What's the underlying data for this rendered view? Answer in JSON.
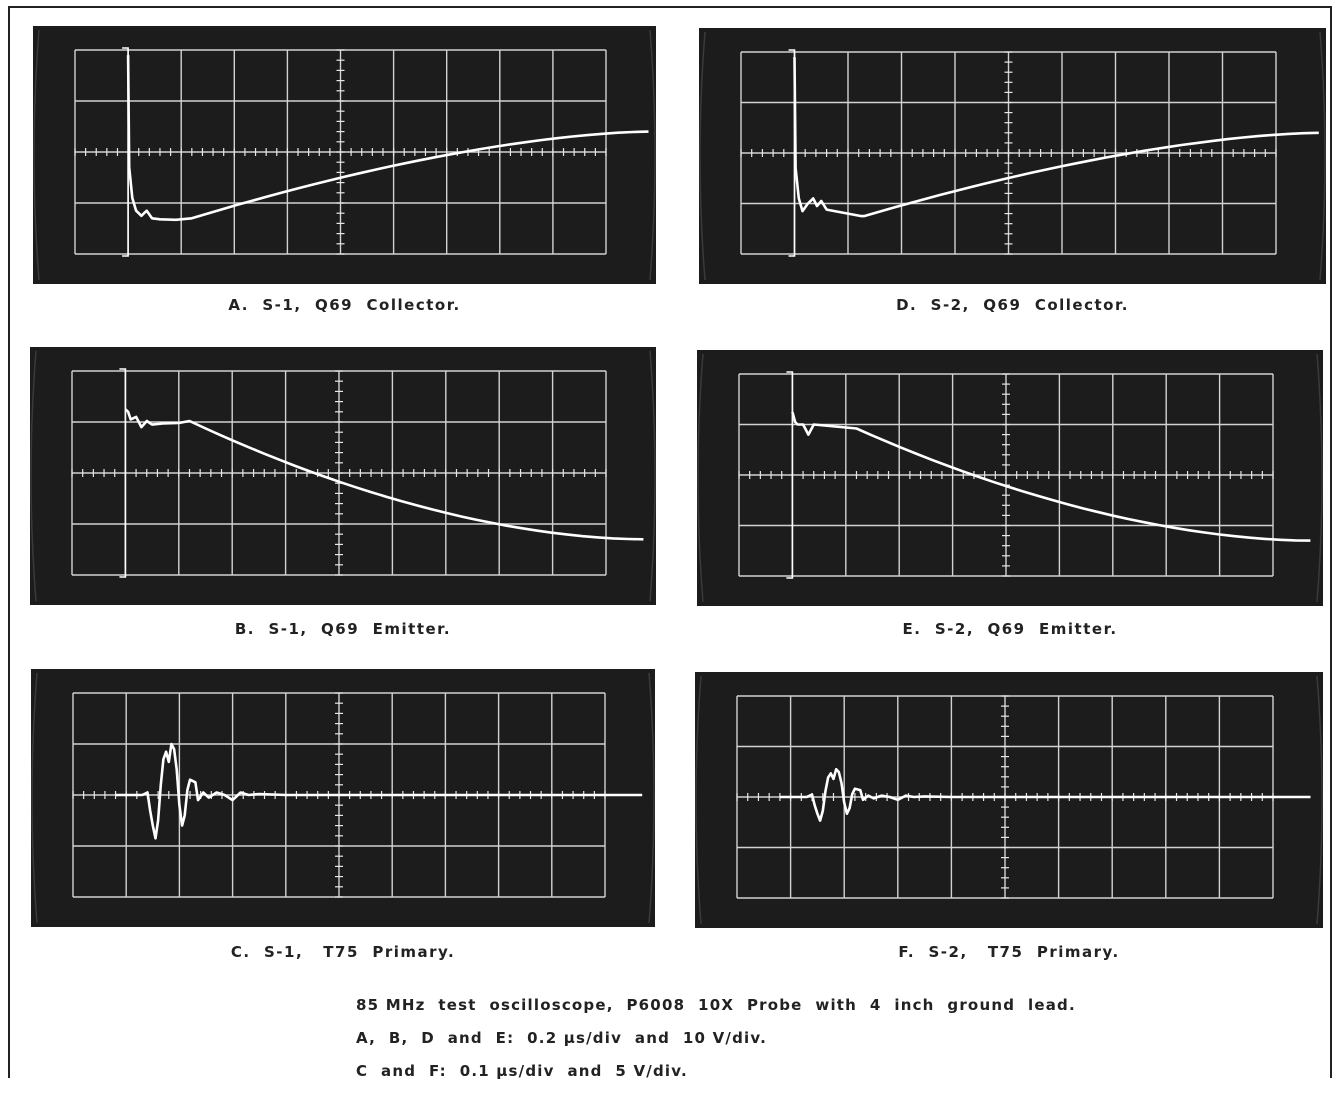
{
  "panels": [
    {
      "id": "A",
      "caption": "A.  S-1,  Q69  Collector.",
      "trace": "collector",
      "variant": 1
    },
    {
      "id": "D",
      "caption": "D.  S-2,  Q69  Collector.",
      "trace": "collector",
      "variant": 2
    },
    {
      "id": "B",
      "caption": "B.  S-1,  Q69  Emitter.",
      "trace": "emitter",
      "variant": 1
    },
    {
      "id": "E",
      "caption": "E.  S-2,  Q69  Emitter.",
      "trace": "emitter",
      "variant": 2
    },
    {
      "id": "C",
      "caption": "C.  S-1,   T75  Primary.",
      "trace": "primary",
      "variant": 1
    },
    {
      "id": "F",
      "caption": "F.  S-2,   T75  Primary.",
      "trace": "primary",
      "variant": 2
    }
  ],
  "notes": {
    "line1": "85 MHz  test  oscilloscope,  P6008  10X  Probe  with  4  inch  ground  lead.",
    "line2": "A,  B,  D  and  E:  0.2 µs/div  and  10 V/div.",
    "line3": "C  and  F:  0.1 µs/div  and  5 V/div."
  },
  "colors": {
    "screen": "#1c1c1c",
    "grid": "#e6e6e6",
    "trace": "#ffffff",
    "text": "#222222"
  }
}
